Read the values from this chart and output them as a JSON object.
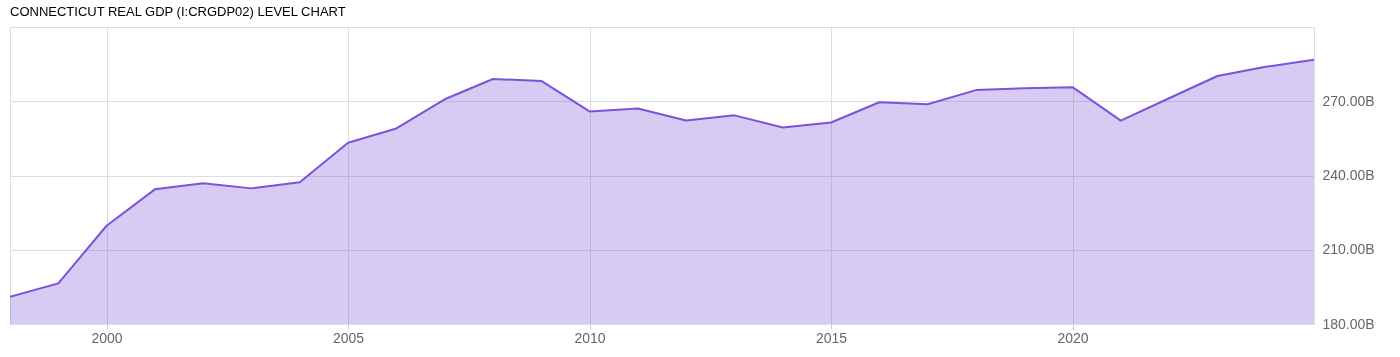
{
  "chart_data": {
    "type": "area",
    "title": "CONNECTICUT REAL GDP (I:CRGDP02) LEVEL CHART",
    "x": [
      1998,
      1999,
      2000,
      2001,
      2002,
      2003,
      2004,
      2005,
      2006,
      2007,
      2008,
      2009,
      2010,
      2011,
      2012,
      2013,
      2014,
      2015,
      2016,
      2017,
      2018,
      2019,
      2020,
      2021,
      2022,
      2023,
      2024,
      2025
    ],
    "series": [
      {
        "color": "#7b52d9",
        "values": [
          191.0,
          196.4,
          219.7,
          234.4,
          236.9,
          234.8,
          237.3,
          253.2,
          259.0,
          270.8,
          279.0,
          278.2,
          265.9,
          267.1,
          262.2,
          264.3,
          259.4,
          261.4,
          269.6,
          268.8,
          274.5,
          275.3,
          275.7,
          262.2,
          271.2,
          280.2,
          283.9,
          286.8
        ]
      }
    ],
    "xlim": [
      1998,
      2025
    ],
    "xticks": [
      2000,
      2005,
      2010,
      2015,
      2020
    ],
    "ylim": [
      180,
      300
    ],
    "yticks": [
      {
        "value": 180,
        "label": "180.00B"
      },
      {
        "value": 210,
        "label": "210.00B"
      },
      {
        "value": 240,
        "label": "240.00B"
      },
      {
        "value": 270,
        "label": "270.00B"
      }
    ],
    "grid": true,
    "marker": "none",
    "line_style": "solid"
  }
}
